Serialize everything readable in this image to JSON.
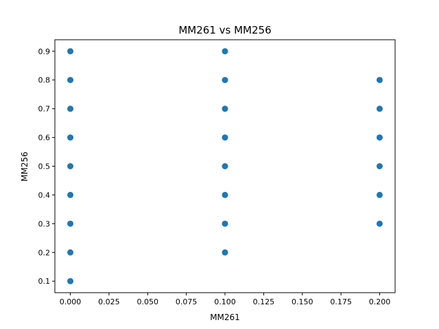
{
  "chart_data": {
    "type": "scatter",
    "title": "MM261 vs MM256",
    "xlabel": "MM261",
    "ylabel": "MM256",
    "xlim": [
      -0.01,
      0.21
    ],
    "ylim": [
      0.06,
      0.94
    ],
    "xticks": [
      0.0,
      0.025,
      0.05,
      0.075,
      0.1,
      0.125,
      0.15,
      0.175,
      0.2
    ],
    "xtick_labels": [
      "0.000",
      "0.025",
      "0.050",
      "0.075",
      "0.100",
      "0.125",
      "0.150",
      "0.175",
      "0.200"
    ],
    "yticks": [
      0.1,
      0.2,
      0.3,
      0.4,
      0.5,
      0.6,
      0.7,
      0.8,
      0.9
    ],
    "ytick_labels": [
      "0.1",
      "0.2",
      "0.3",
      "0.4",
      "0.5",
      "0.6",
      "0.7",
      "0.8",
      "0.9"
    ],
    "grid": false,
    "color": "#1f77b4",
    "points": [
      {
        "x": 0.0,
        "y": 0.9
      },
      {
        "x": 0.0,
        "y": 0.8
      },
      {
        "x": 0.0,
        "y": 0.7
      },
      {
        "x": 0.0,
        "y": 0.6
      },
      {
        "x": 0.0,
        "y": 0.5
      },
      {
        "x": 0.0,
        "y": 0.4
      },
      {
        "x": 0.0,
        "y": 0.3
      },
      {
        "x": 0.0,
        "y": 0.2
      },
      {
        "x": 0.0,
        "y": 0.1
      },
      {
        "x": 0.1,
        "y": 0.9
      },
      {
        "x": 0.1,
        "y": 0.8
      },
      {
        "x": 0.1,
        "y": 0.7
      },
      {
        "x": 0.1,
        "y": 0.6
      },
      {
        "x": 0.1,
        "y": 0.5
      },
      {
        "x": 0.1,
        "y": 0.4
      },
      {
        "x": 0.1,
        "y": 0.3
      },
      {
        "x": 0.1,
        "y": 0.2
      },
      {
        "x": 0.2,
        "y": 0.8
      },
      {
        "x": 0.2,
        "y": 0.7
      },
      {
        "x": 0.2,
        "y": 0.6
      },
      {
        "x": 0.2,
        "y": 0.5
      },
      {
        "x": 0.2,
        "y": 0.4
      },
      {
        "x": 0.2,
        "y": 0.3
      }
    ]
  }
}
